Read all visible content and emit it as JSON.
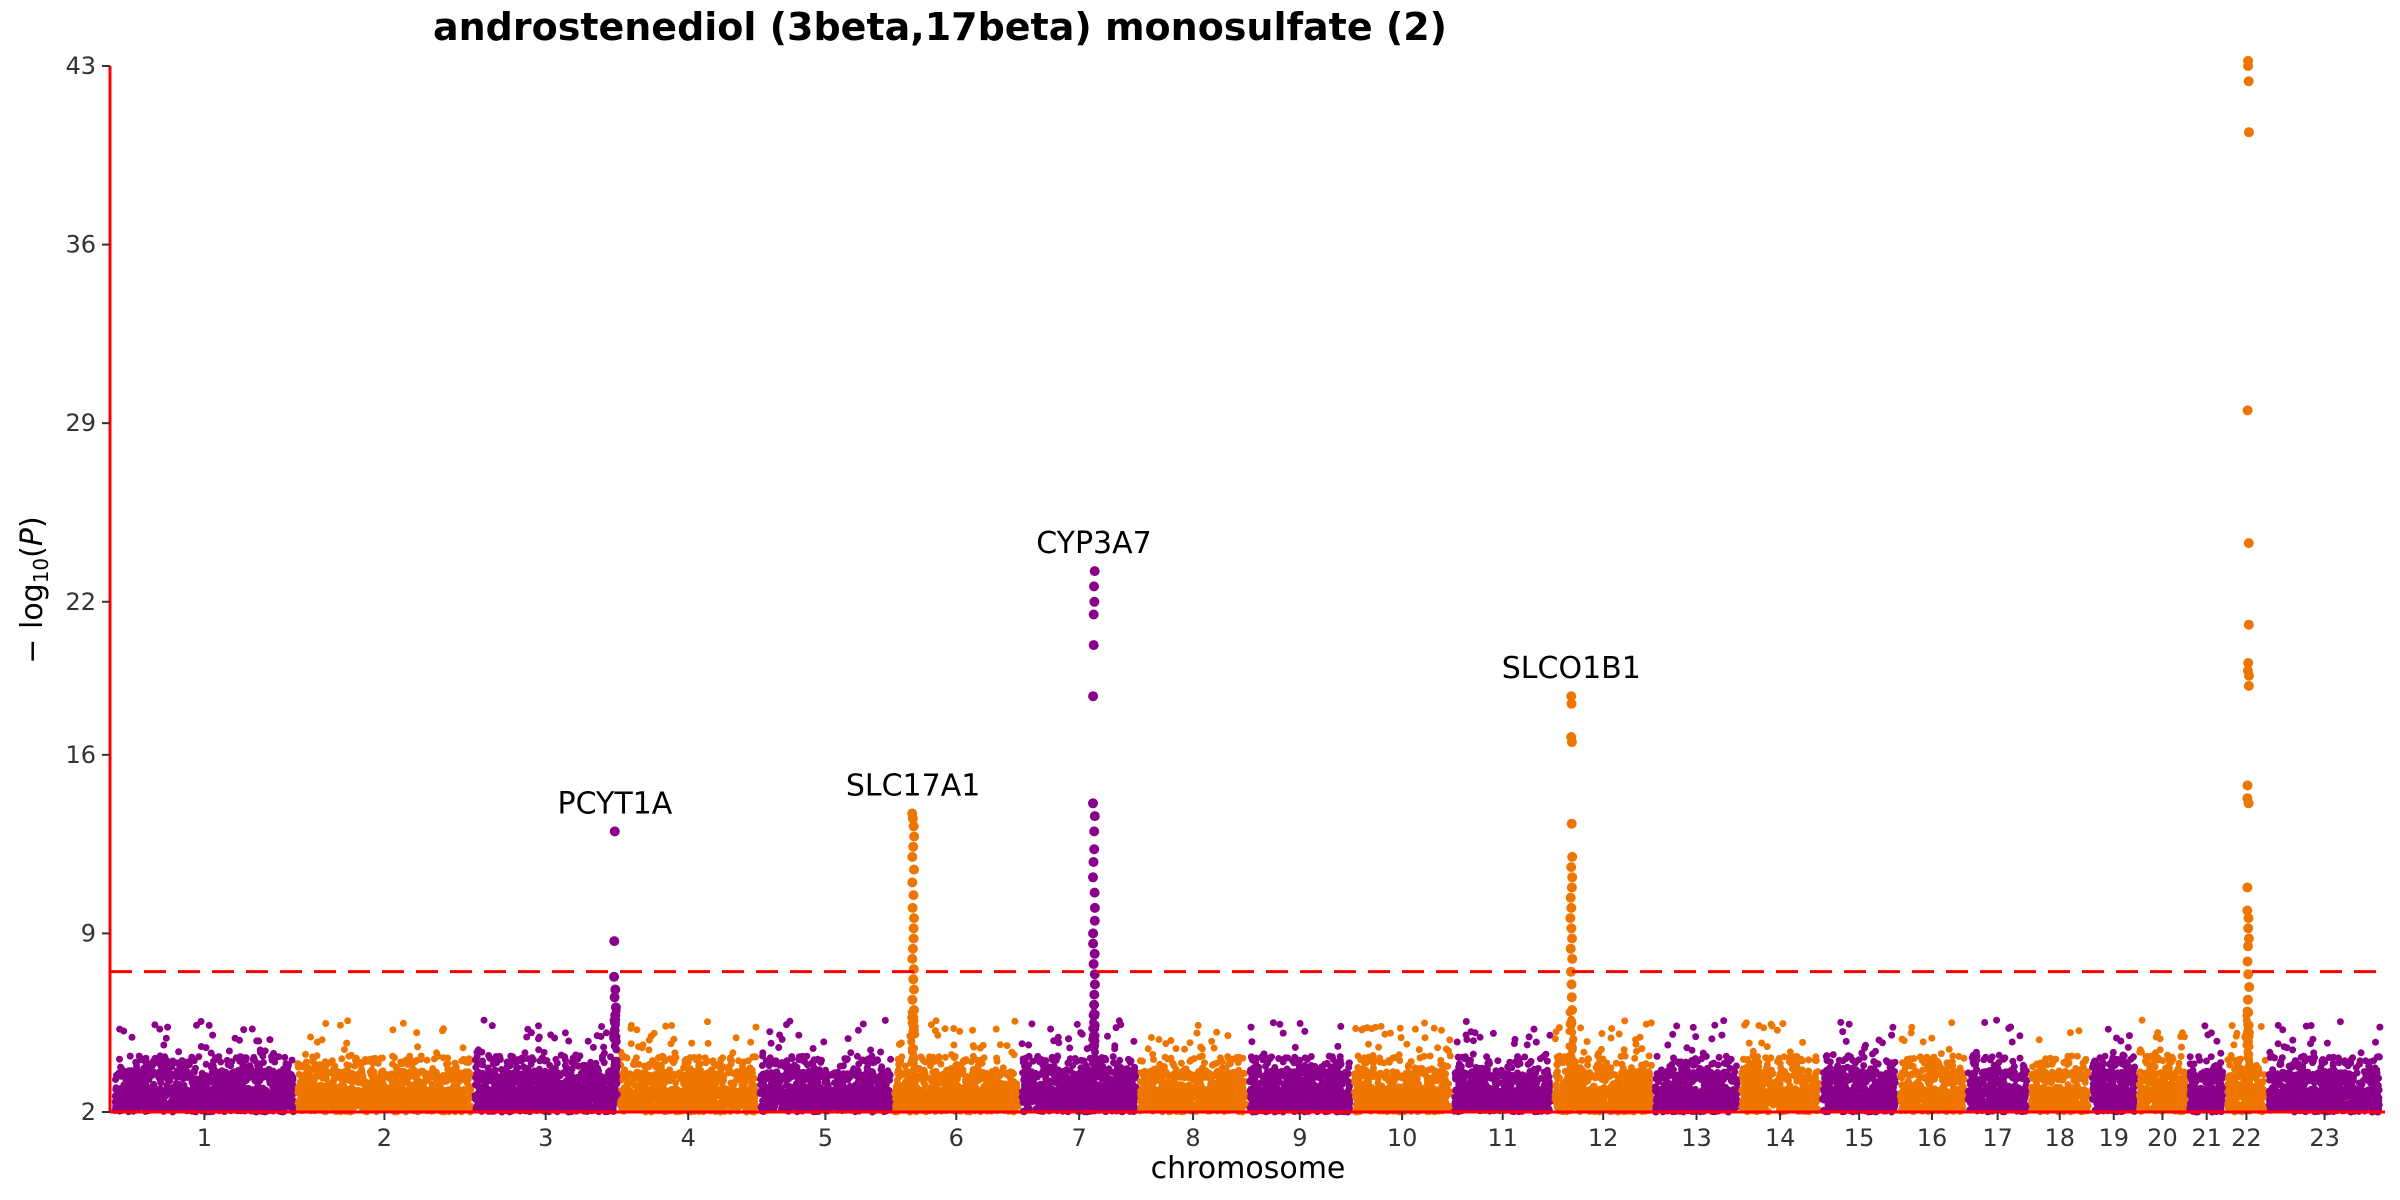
{
  "chart_data": {
    "type": "scatter",
    "subtype": "manhattan",
    "title": "androstenediol (3beta,17beta) monosulfate (2)",
    "xlabel": "chromosome",
    "ylabel_main": "− log",
    "ylabel_sub": "10",
    "ylabel_paren_open": "(",
    "ylabel_var": "P",
    "ylabel_paren_close": ")",
    "ylim": [
      2,
      43
    ],
    "yticks": [
      2,
      9,
      16,
      22,
      29,
      36,
      43
    ],
    "significance_threshold": 7.5,
    "grid": false,
    "legend": "none",
    "colors": {
      "odd": "#8B008B",
      "even": "#EE7600",
      "axis": "#FF0000",
      "threshold": "#FF0000"
    },
    "chromosomes": [
      {
        "label": "1",
        "length": 1.0
      },
      {
        "label": "2",
        "length": 0.97
      },
      {
        "label": "3",
        "length": 0.79
      },
      {
        "label": "4",
        "length": 0.76
      },
      {
        "label": "5",
        "length": 0.73
      },
      {
        "label": "6",
        "length": 0.69
      },
      {
        "label": "7",
        "length": 0.64
      },
      {
        "label": "8",
        "length": 0.59
      },
      {
        "label": "9",
        "length": 0.56
      },
      {
        "label": "10",
        "length": 0.54
      },
      {
        "label": "11",
        "length": 0.54
      },
      {
        "label": "12",
        "length": 0.54
      },
      {
        "label": "13",
        "length": 0.46
      },
      {
        "label": "14",
        "length": 0.43
      },
      {
        "label": "15",
        "length": 0.41
      },
      {
        "label": "16",
        "length": 0.36
      },
      {
        "label": "17",
        "length": 0.33
      },
      {
        "label": "18",
        "length": 0.32
      },
      {
        "label": "19",
        "length": 0.24
      },
      {
        "label": "20",
        "length": 0.26
      },
      {
        "label": "21",
        "length": 0.19
      },
      {
        "label": "22",
        "length": 0.21
      },
      {
        "label": "23",
        "length": 0.62
      }
    ],
    "peaks": [
      {
        "chrom": "3",
        "pos": 0.99,
        "max": 13.0,
        "label": "PCYT1A",
        "values": [
          13.0,
          8.7,
          7.3,
          6.8,
          6.5,
          6.1,
          5.8,
          5.5,
          5.2,
          5.0
        ]
      },
      {
        "chrom": "6",
        "pos": 0.15,
        "max": 13.7,
        "label": "SLC17A1",
        "values": [
          13.7,
          13.5,
          13.2,
          12.8,
          12.4,
          12.0,
          11.5,
          11.0,
          10.5,
          10.0,
          9.6,
          9.2,
          8.8,
          8.4,
          8.0,
          7.6,
          7.2,
          6.8,
          6.4,
          6.0,
          5.6,
          5.2
        ]
      },
      {
        "chrom": "7",
        "pos": 0.63,
        "max": 23.2,
        "label": "CYP3A7",
        "values": [
          23.2,
          22.6,
          22.0,
          21.5,
          20.3,
          18.3,
          14.1,
          13.6,
          13.0,
          12.3,
          11.8,
          11.2,
          10.6,
          10.0,
          9.5,
          9.0,
          8.6,
          8.2,
          7.8,
          7.4,
          7.0,
          6.6,
          6.2,
          5.8,
          5.4,
          5.0
        ]
      },
      {
        "chrom": "12",
        "pos": 0.17,
        "max": 18.3,
        "label": "SLCO1B1",
        "values": [
          18.3,
          18.0,
          16.7,
          16.5,
          13.3,
          12.0,
          11.6,
          11.2,
          10.8,
          10.4,
          10.0,
          9.6,
          9.2,
          8.8,
          8.4,
          8.0,
          7.5,
          7.0,
          6.5,
          6.0,
          5.5
        ]
      },
      {
        "chrom": "22",
        "pos": 0.55,
        "max": 43.2,
        "label": "",
        "values": [
          43.2,
          43.0,
          42.4,
          40.4,
          29.5,
          24.3,
          21.1,
          19.6,
          19.3,
          19.1,
          18.7,
          14.8,
          14.3,
          14.1,
          10.8,
          9.9,
          9.6,
          9.2,
          8.8,
          8.5,
          7.9,
          7.4,
          6.9,
          6.4,
          5.9,
          5.4,
          4.9
        ]
      }
    ]
  }
}
